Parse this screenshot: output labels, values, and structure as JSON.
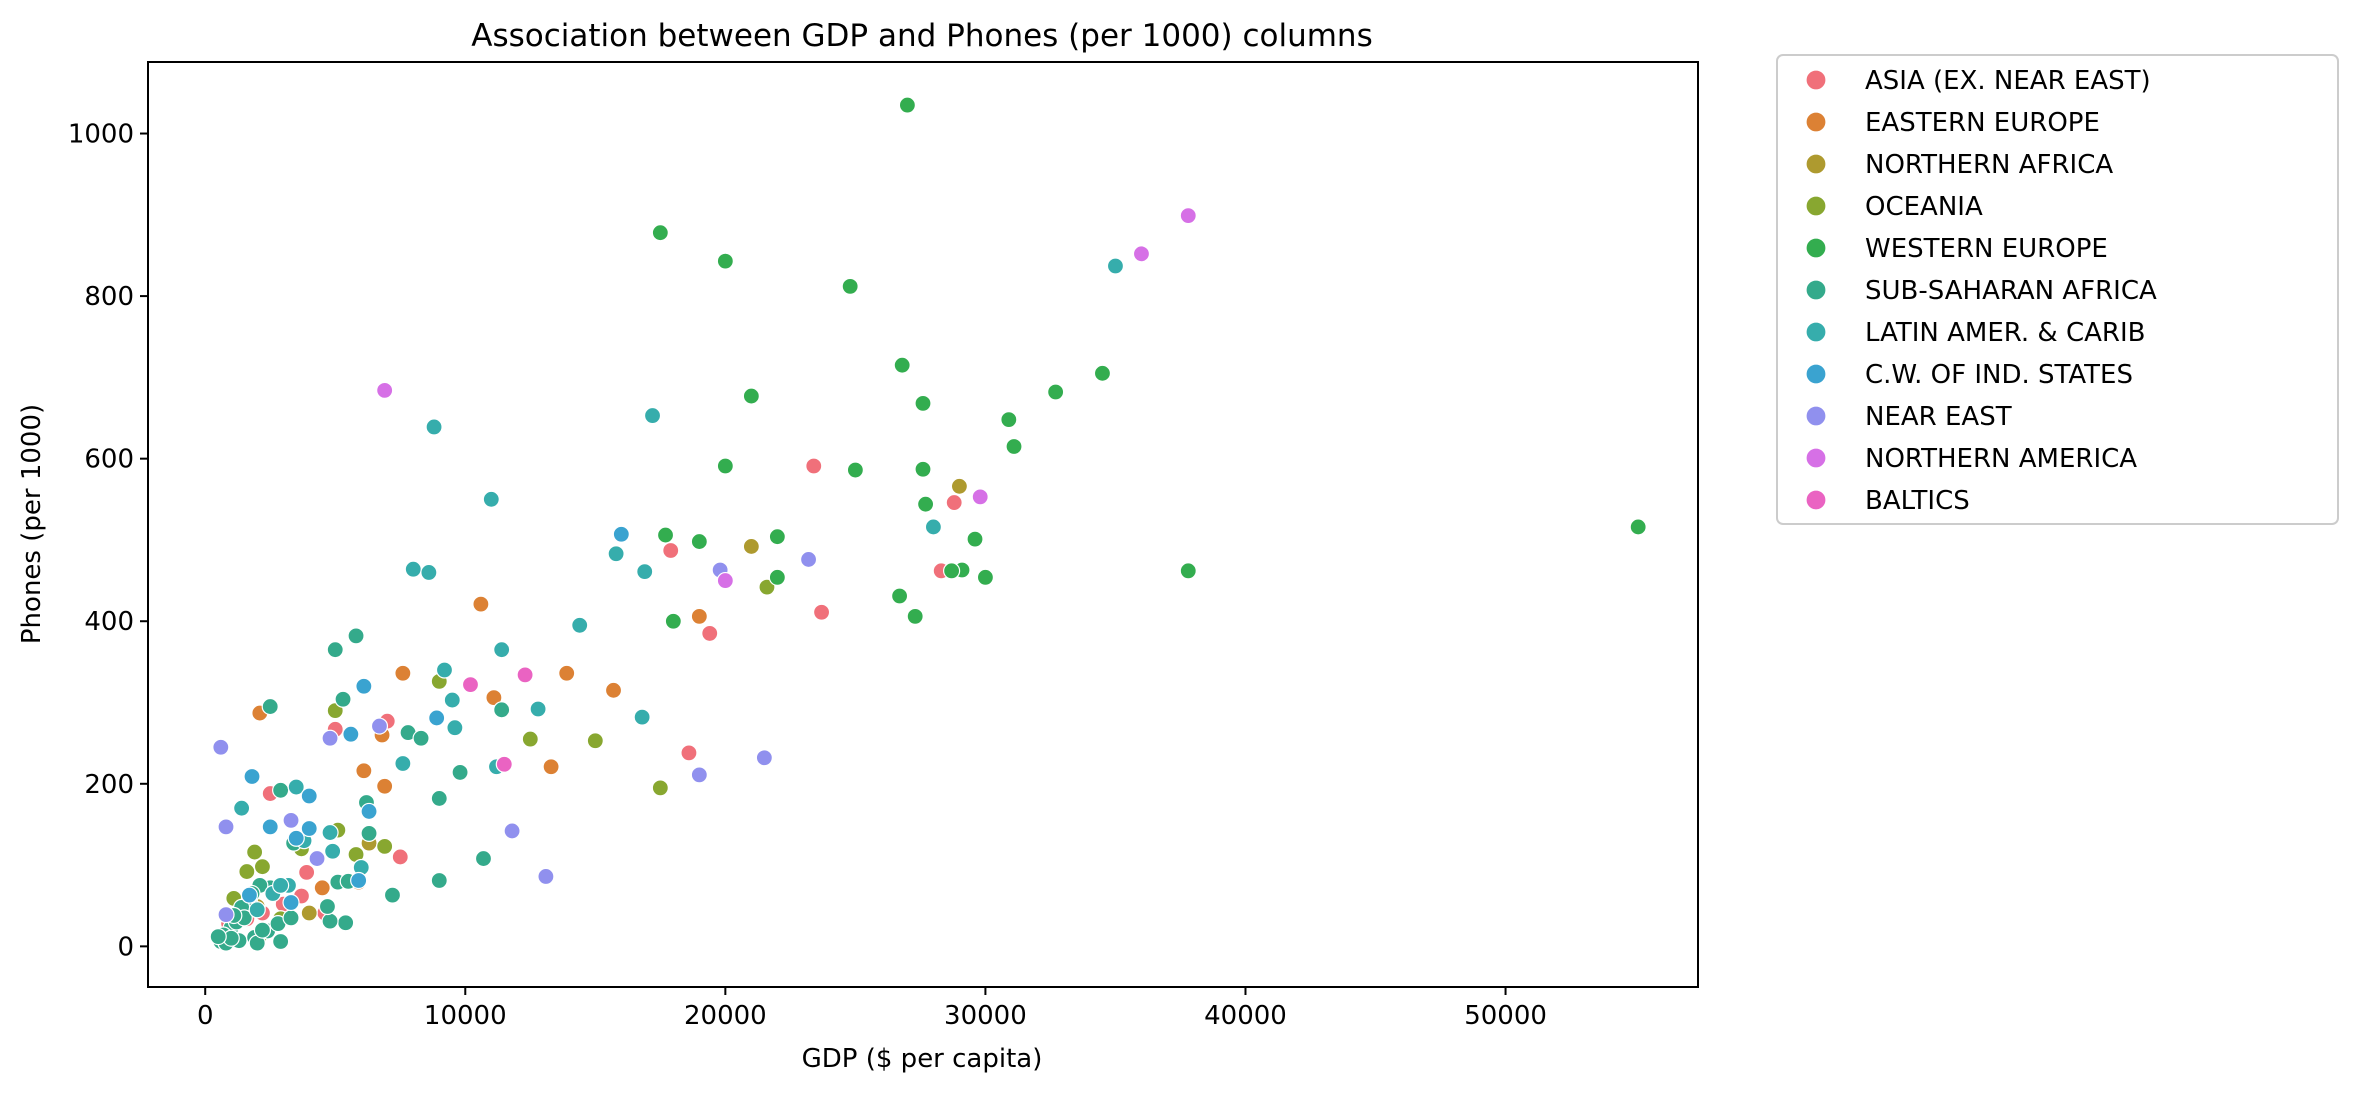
{
  "chart_data": {
    "type": "scatter",
    "title": "Association between GDP and Phones (per 1000) columns",
    "xlabel": "GDP ($ per capita)",
    "ylabel": "Phones (per 1000)",
    "xlim": [
      -2200,
      57400
    ],
    "ylim": [
      -50,
      1088
    ],
    "x_ticks": [
      0,
      10000,
      20000,
      30000,
      40000,
      50000
    ],
    "y_ticks": [
      0,
      200,
      400,
      600,
      800,
      1000
    ],
    "x_tick_labels": [
      "0",
      "10000",
      "20000",
      "30000",
      "40000",
      "50000"
    ],
    "y_tick_labels": [
      "0",
      "200",
      "400",
      "600",
      "800",
      "1000"
    ],
    "grid": false,
    "legend_position": "outside-right-top",
    "series": [
      {
        "name": "ASIA (EX. NEAR EAST)",
        "color": "#f0707a",
        "points": [
          [
            17900,
            487
          ],
          [
            23400,
            591
          ],
          [
            28800,
            546
          ],
          [
            28300,
            462
          ],
          [
            23700,
            411
          ],
          [
            19400,
            385
          ],
          [
            18600,
            238
          ],
          [
            7500,
            110
          ],
          [
            7000,
            277
          ],
          [
            5000,
            267
          ],
          [
            2500,
            188
          ],
          [
            3900,
            91
          ],
          [
            3700,
            62
          ],
          [
            3000,
            52
          ],
          [
            1800,
            61
          ],
          [
            1300,
            40
          ],
          [
            900,
            28
          ],
          [
            1600,
            34
          ],
          [
            2200,
            41
          ],
          [
            4600,
            41
          ]
        ]
      },
      {
        "name": "EASTERN EUROPE",
        "color": "#dc8134",
        "points": [
          [
            10600,
            421
          ],
          [
            7600,
            336
          ],
          [
            13900,
            336
          ],
          [
            11100,
            306
          ],
          [
            15700,
            315
          ],
          [
            19000,
            406
          ],
          [
            13300,
            221
          ],
          [
            6800,
            260
          ],
          [
            6100,
            216
          ],
          [
            6900,
            197
          ],
          [
            5900,
            79
          ],
          [
            4500,
            72
          ],
          [
            2100,
            287
          ]
        ]
      },
      {
        "name": "NORTHERN AFRICA",
        "color": "#ae9a2f",
        "points": [
          [
            29000,
            566
          ],
          [
            21000,
            492
          ],
          [
            6300,
            127
          ],
          [
            4000,
            41
          ],
          [
            2000,
            49
          ],
          [
            2300,
            19
          ]
        ]
      },
      {
        "name": "OCEANIA",
        "color": "#88a730",
        "points": [
          [
            21600,
            442
          ],
          [
            9000,
            326
          ],
          [
            12500,
            255
          ],
          [
            15000,
            253
          ],
          [
            17500,
            195
          ],
          [
            5000,
            290
          ],
          [
            6900,
            123
          ],
          [
            5800,
            113
          ],
          [
            3700,
            120
          ],
          [
            2200,
            98
          ],
          [
            1600,
            92
          ],
          [
            1100,
            59
          ],
          [
            1900,
            116
          ],
          [
            5100,
            143
          ],
          [
            2900,
            34
          ],
          [
            2100,
            13
          ]
        ]
      },
      {
        "name": "WESTERN EUROPE",
        "color": "#33ad4f",
        "points": [
          [
            27000,
            1035
          ],
          [
            17500,
            878
          ],
          [
            20000,
            843
          ],
          [
            24800,
            812
          ],
          [
            26800,
            715
          ],
          [
            21000,
            677
          ],
          [
            27600,
            668
          ],
          [
            32700,
            682
          ],
          [
            34500,
            705
          ],
          [
            30900,
            648
          ],
          [
            31100,
            615
          ],
          [
            20000,
            591
          ],
          [
            25000,
            586
          ],
          [
            27600,
            587
          ],
          [
            27700,
            544
          ],
          [
            22000,
            504
          ],
          [
            19000,
            498
          ],
          [
            17700,
            506
          ],
          [
            29600,
            501
          ],
          [
            22000,
            454
          ],
          [
            30000,
            454
          ],
          [
            29100,
            463
          ],
          [
            28700,
            462
          ],
          [
            26700,
            431
          ],
          [
            27300,
            406
          ],
          [
            18000,
            400
          ],
          [
            37800,
            462
          ],
          [
            55100,
            516
          ]
        ]
      },
      {
        "name": "SUB-SAHARAN AFRICA",
        "color": "#34aa8b",
        "points": [
          [
            7800,
            263
          ],
          [
            5800,
            382
          ],
          [
            5000,
            365
          ],
          [
            5300,
            304
          ],
          [
            6200,
            177
          ],
          [
            6300,
            139
          ],
          [
            8300,
            256
          ],
          [
            9800,
            214
          ],
          [
            11400,
            291
          ],
          [
            9000,
            182
          ],
          [
            7200,
            63
          ],
          [
            9000,
            81
          ],
          [
            10700,
            108
          ],
          [
            2500,
            295
          ],
          [
            2900,
            192
          ],
          [
            5100,
            79
          ],
          [
            5500,
            80
          ],
          [
            5400,
            29
          ],
          [
            4800,
            31
          ],
          [
            3400,
            127
          ],
          [
            2500,
            72
          ],
          [
            2100,
            75
          ],
          [
            1700,
            58
          ],
          [
            1400,
            48
          ],
          [
            1000,
            23
          ],
          [
            700,
            14
          ],
          [
            600,
            6
          ],
          [
            800,
            4
          ],
          [
            1300,
            7
          ],
          [
            1000,
            10
          ],
          [
            1900,
            11
          ],
          [
            2000,
            4
          ],
          [
            2400,
            19
          ],
          [
            2800,
            28
          ],
          [
            1200,
            30
          ],
          [
            1500,
            35
          ],
          [
            3300,
            35
          ],
          [
            4700,
            49
          ],
          [
            1800,
            65
          ],
          [
            1100,
            38
          ],
          [
            2200,
            20
          ],
          [
            2900,
            6
          ],
          [
            500,
            12
          ]
        ]
      },
      {
        "name": "LATIN AMER. & CARIB",
        "color": "#36adac",
        "points": [
          [
            35000,
            837
          ],
          [
            8800,
            639
          ],
          [
            17200,
            653
          ],
          [
            11000,
            550
          ],
          [
            8000,
            464
          ],
          [
            8600,
            460
          ],
          [
            14400,
            395
          ],
          [
            16800,
            282
          ],
          [
            12800,
            292
          ],
          [
            9200,
            340
          ],
          [
            9600,
            269
          ],
          [
            11400,
            365
          ],
          [
            7600,
            225
          ],
          [
            9500,
            303
          ],
          [
            6000,
            97
          ],
          [
            4800,
            140
          ],
          [
            3500,
            196
          ],
          [
            3800,
            130
          ],
          [
            1400,
            170
          ],
          [
            2600,
            65
          ],
          [
            3200,
            75
          ],
          [
            2900,
            75
          ],
          [
            16900,
            461
          ],
          [
            15800,
            483
          ],
          [
            28000,
            516
          ],
          [
            11200,
            221
          ],
          [
            4900,
            117
          ],
          [
            2000,
            45
          ]
        ]
      },
      {
        "name": "C.W. OF IND. STATES",
        "color": "#3aa3d0",
        "points": [
          [
            16000,
            507
          ],
          [
            8900,
            281
          ],
          [
            6100,
            320
          ],
          [
            6300,
            166
          ],
          [
            5600,
            261
          ],
          [
            4000,
            185
          ],
          [
            3500,
            133
          ],
          [
            4000,
            145
          ],
          [
            1800,
            209
          ],
          [
            2500,
            147
          ],
          [
            1700,
            63
          ],
          [
            3300,
            54
          ],
          [
            5900,
            81
          ]
        ]
      },
      {
        "name": "NEAR EAST",
        "color": "#9090ee",
        "points": [
          [
            23200,
            476
          ],
          [
            19800,
            463
          ],
          [
            21500,
            232
          ],
          [
            19000,
            211
          ],
          [
            11800,
            142
          ],
          [
            13100,
            86
          ],
          [
            6700,
            271
          ],
          [
            4800,
            256
          ],
          [
            3300,
            155
          ],
          [
            800,
            147
          ],
          [
            600,
            245
          ],
          [
            4300,
            108
          ],
          [
            800,
            39
          ]
        ]
      },
      {
        "name": "NORTHERN AMERICA",
        "color": "#d670e6",
        "points": [
          [
            37800,
            899
          ],
          [
            36000,
            852
          ],
          [
            29800,
            553
          ],
          [
            20000,
            450
          ],
          [
            6900,
            684
          ]
        ]
      },
      {
        "name": "BALTICS",
        "color": "#ea63c2",
        "points": [
          [
            12300,
            334
          ],
          [
            10200,
            322
          ],
          [
            11500,
            224
          ]
        ]
      }
    ]
  }
}
